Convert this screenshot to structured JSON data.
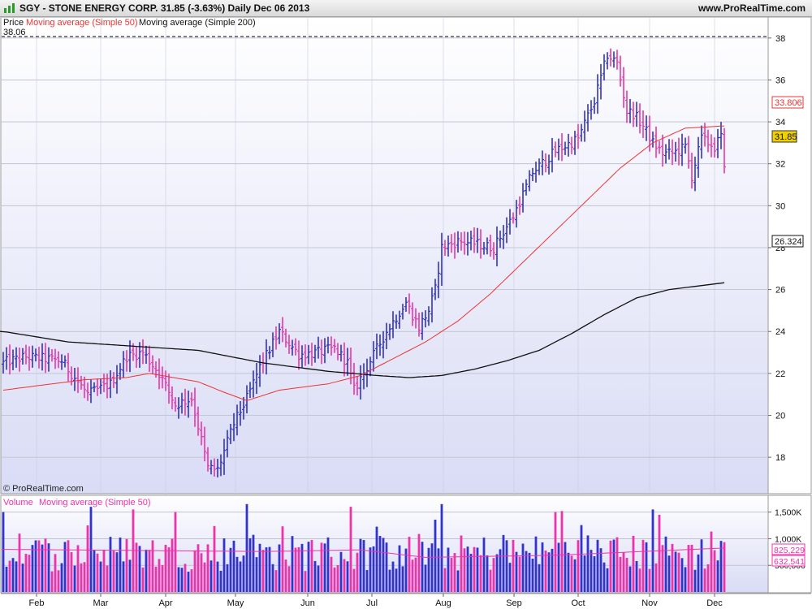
{
  "header": {
    "title": "SGY - STONE ENERGY CORP.    31.85 (-3.63%)    Daily  Dec 06 2013",
    "site": "www.ProRealTime.com"
  },
  "price_panel": {
    "legend_price": "Price",
    "legend_ma50": "Moving average (Simple 50)",
    "legend_ma200": "Moving average (Simple 200)",
    "high_label": "38.06",
    "watermark": "© ProRealTime.com",
    "tags": {
      "ma50": "33.806",
      "last": "31.85",
      "ma200": "26.324"
    }
  },
  "volume_panel": {
    "legend_volume": "Volume",
    "legend_ma": "Moving average (Simple 50)",
    "tags": {
      "top": "825,229",
      "bottom": "632,541"
    }
  },
  "colors": {
    "up": "#3232cc",
    "down": "#ee33aa",
    "ma50": "#ee3333",
    "ma200": "#111111",
    "bg_top": "#ffffff",
    "bg_bottom": "#d9dcf5",
    "last_tag_bg": "#f0d000"
  },
  "chart_data": [
    {
      "type": "bar",
      "subtype": "ohlc-price",
      "x_months": [
        "Feb",
        "Mar",
        "Apr",
        "May",
        "Jun",
        "Jul",
        "Aug",
        "Sep",
        "Oct",
        "Nov",
        "Dec"
      ],
      "y_ticks": [
        18,
        20,
        22,
        24,
        26,
        28,
        30,
        32,
        34,
        36,
        38
      ],
      "y_tick_labels": [
        "18",
        "20",
        "22",
        "24",
        "26",
        "28",
        "30",
        "32",
        "34",
        "36",
        "38"
      ],
      "ylim": [
        16.3,
        39.0
      ],
      "close_anchors": [
        [
          0,
          22.5
        ],
        [
          7,
          22.8
        ],
        [
          18,
          22.6
        ],
        [
          26,
          21.0
        ],
        [
          33,
          21.5
        ],
        [
          38,
          22.8
        ],
        [
          43,
          23.0
        ],
        [
          48,
          22.0
        ],
        [
          53,
          20.5
        ],
        [
          58,
          20.8
        ],
        [
          63,
          17.5
        ],
        [
          66,
          17.4
        ],
        [
          71,
          19.6
        ],
        [
          75,
          20.8
        ],
        [
          79,
          22.3
        ],
        [
          85,
          24.0
        ],
        [
          91,
          22.9
        ],
        [
          97,
          23.0
        ],
        [
          102,
          23.2
        ],
        [
          106,
          22.5
        ],
        [
          108,
          21.2
        ],
        [
          113,
          22.6
        ],
        [
          118,
          24.0
        ],
        [
          124,
          25.4
        ],
        [
          128,
          24.2
        ],
        [
          131,
          25.0
        ],
        [
          133,
          26.0
        ],
        [
          135,
          28.0
        ],
        [
          140,
          28.3
        ],
        [
          145,
          28.2
        ],
        [
          151,
          28.0
        ],
        [
          157,
          29.5
        ],
        [
          163,
          31.6
        ],
        [
          170,
          32.6
        ],
        [
          177,
          33.2
        ],
        [
          182,
          35.0
        ],
        [
          186,
          37.2
        ],
        [
          189,
          36.8
        ],
        [
          192,
          34.5
        ],
        [
          194,
          34.4
        ],
        [
          197,
          33.8
        ],
        [
          200,
          33.0
        ],
        [
          203,
          32.5
        ],
        [
          206,
          32.5
        ],
        [
          210,
          32.8
        ],
        [
          212,
          31.4
        ],
        [
          215,
          33.2
        ],
        [
          219,
          32.8
        ],
        [
          221,
          33.3
        ],
        [
          222,
          31.85
        ]
      ],
      "ma50_anchors": [
        [
          0,
          21.2
        ],
        [
          25,
          21.7
        ],
        [
          38,
          21.8
        ],
        [
          45,
          22.0
        ],
        [
          60,
          21.6
        ],
        [
          68,
          21.1
        ],
        [
          75,
          20.7
        ],
        [
          85,
          21.2
        ],
        [
          100,
          21.5
        ],
        [
          110,
          21.9
        ],
        [
          120,
          22.7
        ],
        [
          130,
          23.5
        ],
        [
          140,
          24.5
        ],
        [
          150,
          25.8
        ],
        [
          160,
          27.3
        ],
        [
          170,
          28.8
        ],
        [
          180,
          30.3
        ],
        [
          190,
          31.8
        ],
        [
          200,
          33.0
        ],
        [
          210,
          33.7
        ],
        [
          222,
          33.806
        ]
      ],
      "ma200_anchors": [
        [
          0,
          24.0
        ],
        [
          20,
          23.5
        ],
        [
          40,
          23.3
        ],
        [
          60,
          23.1
        ],
        [
          80,
          22.5
        ],
        [
          100,
          22.1
        ],
        [
          115,
          21.9
        ],
        [
          125,
          21.8
        ],
        [
          135,
          21.9
        ],
        [
          145,
          22.2
        ],
        [
          155,
          22.6
        ],
        [
          165,
          23.1
        ],
        [
          175,
          23.9
        ],
        [
          185,
          24.8
        ],
        [
          195,
          25.6
        ],
        [
          205,
          26.0
        ],
        [
          222,
          26.324
        ]
      ],
      "last": 31.85,
      "ma50_last": 33.806,
      "ma200_last": 26.324
    },
    {
      "type": "bar",
      "subtype": "volume",
      "y_ticks": [
        500000,
        1000000,
        1500000
      ],
      "y_tick_labels": [
        "500,000",
        "1,000K",
        "1,500K"
      ],
      "ylim": [
        0,
        1800000
      ],
      "ma50_anchors": [
        [
          0,
          800000
        ],
        [
          40,
          780000
        ],
        [
          80,
          760000
        ],
        [
          110,
          790000
        ],
        [
          130,
          650000
        ],
        [
          170,
          690000
        ],
        [
          222,
          825229
        ]
      ],
      "ma50_last": 825229,
      "second_tag": 632541
    }
  ]
}
